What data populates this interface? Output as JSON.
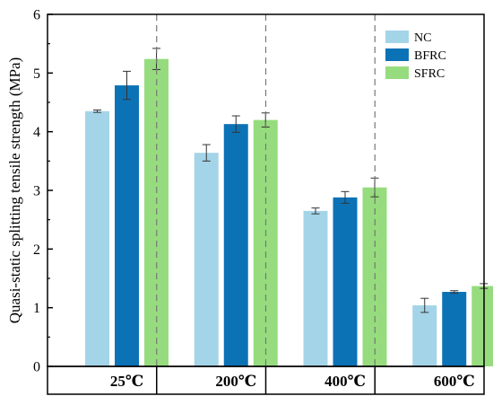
{
  "chart_data": {
    "type": "bar",
    "title": "",
    "xlabel": "",
    "ylabel": "Quasi-static splitting tensile strength (MPa)",
    "ylim": [
      0,
      6
    ],
    "yticks": [
      "0",
      "1",
      "2",
      "3",
      "4",
      "5",
      "6"
    ],
    "categories": [
      "25℃",
      "200℃",
      "400℃",
      "600℃"
    ],
    "series": [
      {
        "name": "NC",
        "color": "#a4d4e8",
        "values": [
          4.35,
          3.64,
          2.65,
          1.04
        ],
        "errors": [
          0.02,
          0.14,
          0.05,
          0.12
        ]
      },
      {
        "name": "BFRC",
        "color": "#0c72b6",
        "values": [
          4.79,
          4.13,
          2.88,
          1.27
        ],
        "errors": [
          0.24,
          0.14,
          0.1,
          0.02
        ]
      },
      {
        "name": "SFRC",
        "color": "#96dc7e",
        "values": [
          5.24,
          4.2,
          3.05,
          1.37
        ],
        "errors": [
          0.18,
          0.12,
          0.16,
          0.04
        ]
      }
    ],
    "legend_position": "top-right",
    "grid": false,
    "group_separators": "dashed"
  }
}
